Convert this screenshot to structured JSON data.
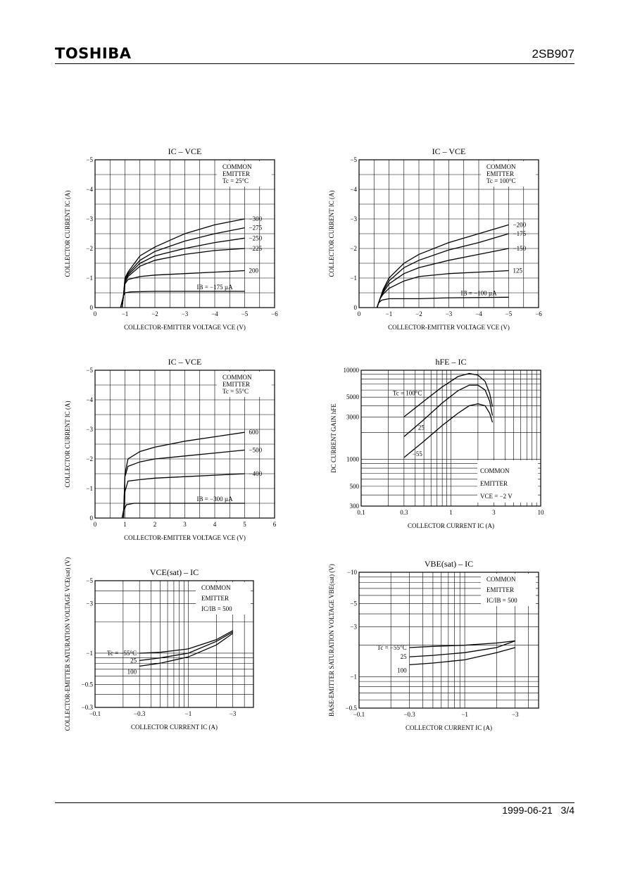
{
  "header": {
    "brand": "TOSHIBA",
    "part_number": "2SB907"
  },
  "footer": {
    "date": "1999-06-21",
    "page": "3/4"
  },
  "chart_data": [
    {
      "type": "line",
      "title": "IC – VCE",
      "xlabel": "COLLECTOR-EMITTER VOLTAGE VCE (V)",
      "ylabel": "COLLECTOR CURRENT IC (A)",
      "xscale": "linear",
      "yscale": "linear",
      "xlim": [
        0,
        -6
      ],
      "ylim": [
        0,
        -5
      ],
      "xticks": [
        "0",
        "−1",
        "−2",
        "−3",
        "−4",
        "−5",
        "−6"
      ],
      "yticks": [
        "0",
        "−1",
        "−2",
        "−3",
        "−4",
        "−5"
      ],
      "annotation": [
        "COMMON",
        "EMITTER",
        "Tc = 25°C"
      ],
      "series": [
        {
          "name": "−300",
          "label": "−300",
          "points": [
            [
              -0.9,
              0
            ],
            [
              -0.95,
              -0.4
            ],
            [
              -1.0,
              -1.0
            ],
            [
              -1.1,
              -1.2
            ],
            [
              -1.5,
              -1.75
            ],
            [
              -2,
              -2.05
            ],
            [
              -3,
              -2.5
            ],
            [
              -4,
              -2.8
            ],
            [
              -5,
              -3.0
            ]
          ]
        },
        {
          "name": "−275",
          "label": "−275",
          "points": [
            [
              -0.9,
              0
            ],
            [
              -0.95,
              -0.4
            ],
            [
              -1.0,
              -0.95
            ],
            [
              -1.1,
              -1.15
            ],
            [
              -1.5,
              -1.6
            ],
            [
              -2,
              -1.9
            ],
            [
              -3,
              -2.25
            ],
            [
              -4,
              -2.5
            ],
            [
              -5,
              -2.7
            ]
          ]
        },
        {
          "name": "−250",
          "label": "−250",
          "points": [
            [
              -0.9,
              0
            ],
            [
              -0.95,
              -0.4
            ],
            [
              -1.0,
              -0.9
            ],
            [
              -1.1,
              -1.1
            ],
            [
              -1.5,
              -1.5
            ],
            [
              -2,
              -1.75
            ],
            [
              -3,
              -2.0
            ],
            [
              -4,
              -2.2
            ],
            [
              -5,
              -2.35
            ]
          ]
        },
        {
          "name": "−225",
          "label": "−225",
          "points": [
            [
              -0.9,
              0
            ],
            [
              -0.95,
              -0.4
            ],
            [
              -1.0,
              -0.85
            ],
            [
              -1.1,
              -1.05
            ],
            [
              -1.5,
              -1.4
            ],
            [
              -2,
              -1.6
            ],
            [
              -3,
              -1.8
            ],
            [
              -4,
              -1.93
            ],
            [
              -5,
              -2.0
            ]
          ]
        },
        {
          "name": "200",
          "label": "200",
          "points": [
            [
              -0.9,
              0
            ],
            [
              -0.95,
              -0.4
            ],
            [
              -1.0,
              -0.8
            ],
            [
              -1.1,
              -0.95
            ],
            [
              -1.5,
              -1.05
            ],
            [
              -2,
              -1.1
            ],
            [
              -3,
              -1.15
            ],
            [
              -4,
              -1.2
            ],
            [
              -5,
              -1.25
            ]
          ]
        },
        {
          "name": "IB = −175 µA",
          "label": "IB = −175 µA",
          "points": [
            [
              -0.85,
              0
            ],
            [
              -0.9,
              -0.2
            ],
            [
              -0.95,
              -0.4
            ],
            [
              -1.0,
              -0.5
            ],
            [
              -1.2,
              -0.53
            ],
            [
              -2,
              -0.55
            ],
            [
              -3,
              -0.55
            ],
            [
              -5,
              -0.55
            ]
          ]
        }
      ]
    },
    {
      "type": "line",
      "title": "IC – VCE",
      "xlabel": "COLLECTOR-EMITTER VOLTAGE VCE (V)",
      "ylabel": "COLLECTOR CURRENT IC (A)",
      "xscale": "linear",
      "yscale": "linear",
      "xlim": [
        0,
        -6
      ],
      "ylim": [
        0,
        -5
      ],
      "xticks": [
        "0",
        "−1",
        "−2",
        "−3",
        "−4",
        "−5",
        "−6"
      ],
      "yticks": [
        "0",
        "−1",
        "−2",
        "−3",
        "−4",
        "−5"
      ],
      "annotation": [
        "COMMON",
        "EMITTER",
        "Tc = 100°C"
      ],
      "series": [
        {
          "name": "−200",
          "label": "−200",
          "points": [
            [
              -0.6,
              0
            ],
            [
              -0.7,
              -0.3
            ],
            [
              -0.8,
              -0.6
            ],
            [
              -1.0,
              -1.0
            ],
            [
              -1.5,
              -1.5
            ],
            [
              -2,
              -1.8
            ],
            [
              -3,
              -2.2
            ],
            [
              -4,
              -2.5
            ],
            [
              -5,
              -2.8
            ]
          ]
        },
        {
          "name": "−175",
          "label": "−175",
          "points": [
            [
              -0.6,
              0
            ],
            [
              -0.7,
              -0.3
            ],
            [
              -0.8,
              -0.55
            ],
            [
              -1.0,
              -0.9
            ],
            [
              -1.5,
              -1.35
            ],
            [
              -2,
              -1.6
            ],
            [
              -3,
              -1.95
            ],
            [
              -4,
              -2.2
            ],
            [
              -5,
              -2.5
            ]
          ]
        },
        {
          "name": "−150",
          "label": "−150",
          "points": [
            [
              -0.6,
              0
            ],
            [
              -0.7,
              -0.3
            ],
            [
              -0.8,
              -0.5
            ],
            [
              -1.0,
              -0.8
            ],
            [
              -1.5,
              -1.15
            ],
            [
              -2,
              -1.35
            ],
            [
              -3,
              -1.6
            ],
            [
              -4,
              -1.8
            ],
            [
              -5,
              -2.0
            ]
          ]
        },
        {
          "name": "125",
          "label": "125",
          "points": [
            [
              -0.6,
              0
            ],
            [
              -0.7,
              -0.3
            ],
            [
              -0.8,
              -0.45
            ],
            [
              -1.0,
              -0.65
            ],
            [
              -1.5,
              -0.9
            ],
            [
              -2,
              -1.05
            ],
            [
              -3,
              -1.15
            ],
            [
              -4,
              -1.2
            ],
            [
              -5,
              -1.25
            ]
          ]
        },
        {
          "name": "IB = −100 µA",
          "label": "IB = −100 µA",
          "points": [
            [
              -0.6,
              0
            ],
            [
              -0.65,
              -0.15
            ],
            [
              -0.75,
              -0.25
            ],
            [
              -1.0,
              -0.3
            ],
            [
              -2,
              -0.3
            ],
            [
              -3,
              -0.33
            ],
            [
              -5,
              -0.35
            ]
          ]
        }
      ]
    },
    {
      "type": "line",
      "title": "IC – VCE",
      "xlabel": "COLLECTOR-EMITTER VOLTAGE VCE (V)",
      "ylabel": "COLLECTOR CURRENT IC (A)",
      "xscale": "linear",
      "yscale": "linear",
      "xlim": [
        0,
        6
      ],
      "ylim": [
        0,
        -5
      ],
      "xticks": [
        "0",
        "1",
        "2",
        "3",
        "4",
        "5",
        "6"
      ],
      "yticks": [
        "0",
        "−1",
        "−2",
        "−3",
        "−4",
        "−5"
      ],
      "annotation": [
        "COMMON",
        "EMITTER",
        "Tc = 55°C"
      ],
      "series": [
        {
          "name": "600",
          "label": "600",
          "points": [
            [
              0.95,
              0
            ],
            [
              1.0,
              -1.5
            ],
            [
              1.1,
              -2.0
            ],
            [
              1.5,
              -2.25
            ],
            [
              2,
              -2.4
            ],
            [
              3,
              -2.6
            ],
            [
              4,
              -2.75
            ],
            [
              5,
              -2.9
            ]
          ]
        },
        {
          "name": "−500",
          "label": "−500",
          "points": [
            [
              0.95,
              0
            ],
            [
              1.0,
              -1.4
            ],
            [
              1.1,
              -1.75
            ],
            [
              1.5,
              -1.9
            ],
            [
              2,
              -2.0
            ],
            [
              3,
              -2.1
            ],
            [
              4,
              -2.2
            ],
            [
              5,
              -2.3
            ]
          ]
        },
        {
          "name": "−400",
          "label": "−400",
          "points": [
            [
              0.95,
              0
            ],
            [
              1.0,
              -0.9
            ],
            [
              1.1,
              -1.25
            ],
            [
              1.5,
              -1.3
            ],
            [
              2,
              -1.35
            ],
            [
              3,
              -1.4
            ],
            [
              4,
              -1.45
            ],
            [
              5,
              -1.5
            ]
          ]
        },
        {
          "name": "IB = −300 µA",
          "label": "IB = −300 µA",
          "points": [
            [
              0.9,
              0
            ],
            [
              0.95,
              -0.25
            ],
            [
              1.05,
              -0.45
            ],
            [
              1.3,
              -0.5
            ],
            [
              2,
              -0.5
            ],
            [
              3,
              -0.5
            ],
            [
              5,
              -0.5
            ]
          ]
        }
      ]
    },
    {
      "type": "line",
      "title": "hFE – IC",
      "xlabel": "COLLECTOR CURRENT IC (A)",
      "ylabel": "DC CURRENT GAIN hFE",
      "xscale": "log",
      "yscale": "log",
      "xlim": [
        0.1,
        10
      ],
      "ylim": [
        300,
        10000
      ],
      "xticks": [
        "0.1",
        "0.3",
        "1",
        "3",
        "10"
      ],
      "yticks": [
        "300",
        "500",
        "1000",
        "3000",
        "5000",
        "10000"
      ],
      "annotation": [
        "COMMON",
        "EMITTER",
        "VCE = −2 V"
      ],
      "series": [
        {
          "name": "Tc = 100°C",
          "label": "Tc = 100°C",
          "points": [
            [
              0.3,
              3000
            ],
            [
              0.5,
              4500
            ],
            [
              0.8,
              6500
            ],
            [
              1.2,
              8500
            ],
            [
              1.6,
              9200
            ],
            [
              2.0,
              8800
            ],
            [
              2.4,
              7500
            ],
            [
              2.7,
              5500
            ],
            [
              2.9,
              3900
            ]
          ]
        },
        {
          "name": "25",
          "label": "25",
          "points": [
            [
              0.3,
              1800
            ],
            [
              0.5,
              2800
            ],
            [
              0.8,
              4300
            ],
            [
              1.2,
              5900
            ],
            [
              1.6,
              6800
            ],
            [
              2.0,
              6800
            ],
            [
              2.4,
              6000
            ],
            [
              2.7,
              4500
            ],
            [
              2.9,
              3100
            ]
          ]
        },
        {
          "name": "−55",
          "label": "−55",
          "points": [
            [
              0.3,
              1050
            ],
            [
              0.5,
              1600
            ],
            [
              0.8,
              2400
            ],
            [
              1.2,
              3300
            ],
            [
              1.6,
              4000
            ],
            [
              2.0,
              4200
            ],
            [
              2.4,
              4000
            ],
            [
              2.7,
              3300
            ],
            [
              2.9,
              2600
            ]
          ]
        }
      ]
    },
    {
      "type": "line",
      "title": "VCE(sat) – IC",
      "xlabel": "COLLECTOR CURRENT IC (A)",
      "ylabel": "COLLECTOR-EMITTER SATURATION VOLTAGE VCE(sat) (V)",
      "xscale": "log",
      "yscale": "log",
      "xlim": [
        -0.1,
        -5
      ],
      "ylim": [
        -0.3,
        -5
      ],
      "xticks": [
        "−0.1",
        "−0.3",
        "−1",
        "−3"
      ],
      "yticks": [
        "−0.3",
        "−0.5",
        "−1",
        "−3",
        "−5"
      ],
      "annotation": [
        "COMMON",
        "EMITTER",
        "IC/IB = 500"
      ],
      "series": [
        {
          "name": "Tc = −55°C",
          "label": "Tc = −55°C",
          "points": [
            [
              -0.3,
              -1.0
            ],
            [
              -0.5,
              -1.02
            ],
            [
              -1,
              -1.1
            ],
            [
              -2,
              -1.35
            ],
            [
              -3,
              -1.65
            ]
          ]
        },
        {
          "name": "25",
          "label": "25",
          "points": [
            [
              -0.3,
              -0.85
            ],
            [
              -0.5,
              -0.9
            ],
            [
              -1,
              -1.0
            ],
            [
              -2,
              -1.3
            ],
            [
              -3,
              -1.6
            ]
          ]
        },
        {
          "name": "100",
          "label": "100",
          "points": [
            [
              -0.3,
              -0.75
            ],
            [
              -0.5,
              -0.8
            ],
            [
              -1,
              -0.92
            ],
            [
              -2,
              -1.2
            ],
            [
              -3,
              -1.55
            ]
          ]
        }
      ]
    },
    {
      "type": "line",
      "title": "VBE(sat) – IC",
      "xlabel": "COLLECTOR CURRENT IC (A)",
      "ylabel": "BASE-EMITTER SATURATION VOLTAGE VBE(sat) (V)",
      "xscale": "log",
      "yscale": "log",
      "xlim": [
        -0.1,
        -5
      ],
      "ylim": [
        -0.5,
        -10
      ],
      "xticks": [
        "−0.1",
        "−0.3",
        "−1",
        "−3"
      ],
      "yticks": [
        "−0.5",
        "−1",
        "−3",
        "−5",
        "−10"
      ],
      "annotation": [
        "COMMON",
        "EMITTER",
        "IC/IB = 500"
      ],
      "series": [
        {
          "name": "Tc = −55°C",
          "label": "Tc = −55°C",
          "points": [
            [
              -0.3,
              -1.9
            ],
            [
              -0.5,
              -1.95
            ],
            [
              -1,
              -2.0
            ],
            [
              -2,
              -2.1
            ],
            [
              -3,
              -2.2
            ]
          ]
        },
        {
          "name": "25",
          "label": "25",
          "points": [
            [
              -0.3,
              -1.55
            ],
            [
              -0.5,
              -1.6
            ],
            [
              -1,
              -1.7
            ],
            [
              -2,
              -1.9
            ],
            [
              -3,
              -2.2
            ]
          ]
        },
        {
          "name": "100",
          "label": "100",
          "points": [
            [
              -0.3,
              -1.3
            ],
            [
              -0.5,
              -1.35
            ],
            [
              -1,
              -1.45
            ],
            [
              -2,
              -1.7
            ],
            [
              -3,
              -1.9
            ]
          ]
        }
      ]
    }
  ]
}
